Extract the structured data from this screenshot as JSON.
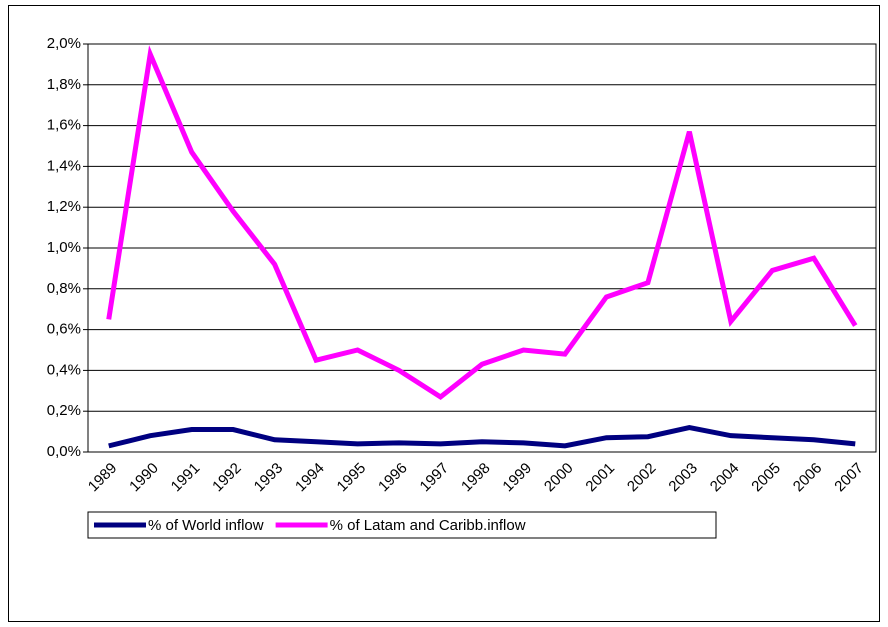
{
  "chart_data": {
    "type": "line",
    "categories": [
      "1989",
      "1990",
      "1991",
      "1992",
      "1993",
      "1994",
      "1995",
      "1996",
      "1997",
      "1998",
      "1999",
      "2000",
      "2001",
      "2002",
      "2003",
      "2004",
      "2005",
      "2006",
      "2007"
    ],
    "series": [
      {
        "name": "% of World inflow",
        "color": "#000080",
        "values": [
          0.03,
          0.08,
          0.11,
          0.11,
          0.06,
          0.05,
          0.04,
          0.045,
          0.04,
          0.05,
          0.045,
          0.03,
          0.07,
          0.075,
          0.12,
          0.08,
          0.07,
          0.06,
          0.04
        ]
      },
      {
        "name": "% of Latam and Caribb.inflow",
        "color": "#ff00ff",
        "values": [
          0.65,
          1.95,
          1.47,
          1.18,
          0.92,
          0.45,
          0.5,
          0.4,
          0.27,
          0.43,
          0.5,
          0.48,
          0.76,
          0.83,
          1.57,
          0.64,
          0.89,
          0.95,
          0.62
        ]
      }
    ],
    "ylim": [
      0,
      2
    ],
    "yticks": [
      {
        "value": 0,
        "label": "0,0%"
      },
      {
        "value": 0.2,
        "label": "0,2%"
      },
      {
        "value": 0.4,
        "label": "0,4%"
      },
      {
        "value": 0.6,
        "label": "0,6%"
      },
      {
        "value": 0.8,
        "label": "0,8%"
      },
      {
        "value": 1,
        "label": "1,0%"
      },
      {
        "value": 1.2,
        "label": "1,2%"
      },
      {
        "value": 1.4,
        "label": "1,4%"
      },
      {
        "value": 1.6,
        "label": "1,6%"
      },
      {
        "value": 1.8,
        "label": "1,8%"
      },
      {
        "value": 2,
        "label": "2,0%"
      }
    ],
    "grid": true,
    "legend": "bottom"
  }
}
